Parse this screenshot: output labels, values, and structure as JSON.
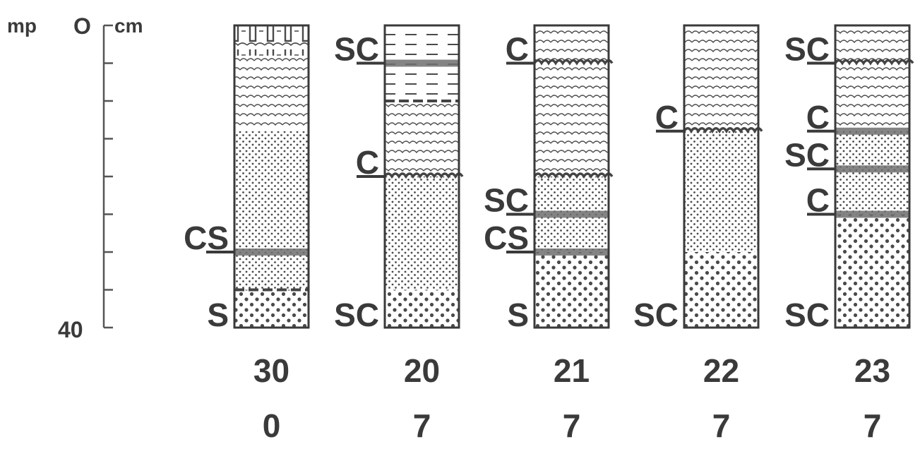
{
  "depth_scale": {
    "left_label": "mp",
    "zero_label": "O",
    "unit_label": "cm",
    "bottom_label": "40",
    "max_depth": 40,
    "tick_interval": 5
  },
  "columns": [
    {
      "number": "30",
      "value": "0",
      "layers": [
        {
          "from": 0,
          "to": 4,
          "type": "blocky"
        },
        {
          "from": 4,
          "to": 14,
          "type": "wavy"
        },
        {
          "from": 14,
          "to": 29,
          "type": "fine-dots"
        },
        {
          "from": 29,
          "to": 35,
          "type": "fine-dots"
        },
        {
          "from": 35,
          "to": 40,
          "type": "coarse-dots"
        }
      ],
      "boundaries": [
        {
          "depth": 30,
          "type": "bold-dark"
        },
        {
          "depth": 35,
          "type": "dashed"
        }
      ],
      "labels": [
        {
          "text": "CS",
          "depth": 30
        },
        {
          "text": "S",
          "depth": 40
        }
      ]
    },
    {
      "number": "20",
      "value": "7",
      "layers": [
        {
          "from": 0,
          "to": 5,
          "type": "dashes"
        },
        {
          "from": 5,
          "to": 10,
          "type": "dashes"
        },
        {
          "from": 10,
          "to": 20,
          "type": "wavy"
        },
        {
          "from": 20,
          "to": 35,
          "type": "fine-dots"
        },
        {
          "from": 35,
          "to": 40,
          "type": "coarse-dots"
        }
      ],
      "boundaries": [
        {
          "depth": 5,
          "type": "bold-dark"
        },
        {
          "depth": 10,
          "type": "dashed"
        },
        {
          "depth": 20,
          "type": "scalloped"
        }
      ],
      "labels": [
        {
          "text": "SC",
          "depth": 5
        },
        {
          "text": "C",
          "depth": 20
        },
        {
          "text": "SC",
          "depth": 40
        }
      ]
    },
    {
      "number": "21",
      "value": "7",
      "layers": [
        {
          "from": 0,
          "to": 5,
          "type": "wavy"
        },
        {
          "from": 5,
          "to": 20,
          "type": "wavy"
        },
        {
          "from": 20,
          "to": 25,
          "type": "fine-dots"
        },
        {
          "from": 25,
          "to": 30,
          "type": "fine-dots"
        },
        {
          "from": 30,
          "to": 40,
          "type": "coarse-dots"
        }
      ],
      "boundaries": [
        {
          "depth": 5,
          "type": "scalloped"
        },
        {
          "depth": 20,
          "type": "scalloped"
        },
        {
          "depth": 25,
          "type": "bold-dark"
        },
        {
          "depth": 30,
          "type": "bold-dark"
        }
      ],
      "labels": [
        {
          "text": "C",
          "depth": 5
        },
        {
          "text": "SC",
          "depth": 25
        },
        {
          "text": "CS",
          "depth": 30
        },
        {
          "text": "S",
          "depth": 40
        }
      ]
    },
    {
      "number": "22",
      "value": "7",
      "layers": [
        {
          "from": 0,
          "to": 14,
          "type": "wavy"
        },
        {
          "from": 14,
          "to": 30,
          "type": "fine-dots"
        },
        {
          "from": 30,
          "to": 40,
          "type": "coarse-dots"
        }
      ],
      "boundaries": [
        {
          "depth": 14,
          "type": "scalloped"
        }
      ],
      "labels": [
        {
          "text": "C",
          "depth": 14
        },
        {
          "text": "SC",
          "depth": 40
        }
      ]
    },
    {
      "number": "23",
      "value": "7",
      "layers": [
        {
          "from": 0,
          "to": 5,
          "type": "wavy"
        },
        {
          "from": 5,
          "to": 14,
          "type": "wavy"
        },
        {
          "from": 14,
          "to": 19,
          "type": "fine-dots"
        },
        {
          "from": 19,
          "to": 25,
          "type": "fine-dots"
        },
        {
          "from": 25,
          "to": 40,
          "type": "coarse-dots"
        }
      ],
      "boundaries": [
        {
          "depth": 5,
          "type": "scalloped"
        },
        {
          "depth": 14,
          "type": "bold-dark"
        },
        {
          "depth": 19,
          "type": "bold-dark"
        },
        {
          "depth": 25,
          "type": "bold-dark"
        }
      ],
      "labels": [
        {
          "text": "SC",
          "depth": 5
        },
        {
          "text": "C",
          "depth": 14
        },
        {
          "text": "SC",
          "depth": 19
        },
        {
          "text": "C",
          "depth": 25
        },
        {
          "text": "SC",
          "depth": 40
        }
      ]
    }
  ]
}
